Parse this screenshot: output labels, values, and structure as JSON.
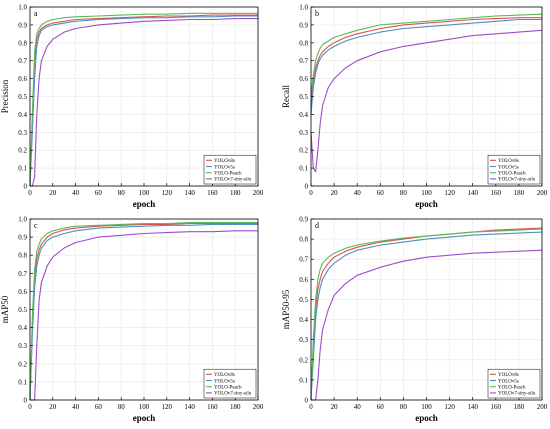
{
  "colors": {
    "YOLOv8s": "#d9534f",
    "YOLOv5s": "#4f8fbf",
    "YOLO-Peach": "#5cb85c",
    "YOLOv7-tiny-silu": "#9b4dca"
  },
  "chart_data": [
    {
      "type": "line",
      "panel_label": "a",
      "title": "",
      "xlabel": "epoch",
      "ylabel": "Precision",
      "xlim": [
        0,
        200
      ],
      "ylim": [
        0,
        1.0
      ],
      "xticks": [
        "0",
        "20",
        "40",
        "60",
        "80",
        "100",
        "120",
        "140",
        "160",
        "180",
        "200"
      ],
      "yticks": [
        "0",
        "0.1",
        "0.2",
        "0.3",
        "0.4",
        "0.5",
        "0.6",
        "0.7",
        "0.8",
        "0.9",
        "1.0"
      ],
      "grid": true,
      "legend_position": "bottom-right",
      "x": [
        0,
        2,
        4,
        6,
        8,
        10,
        15,
        20,
        30,
        40,
        60,
        80,
        100,
        120,
        140,
        160,
        180,
        200
      ],
      "series": [
        {
          "name": "YOLOv8s",
          "color_key": "YOLOv8s",
          "values": [
            0.0,
            0.35,
            0.7,
            0.82,
            0.86,
            0.88,
            0.9,
            0.91,
            0.92,
            0.93,
            0.935,
            0.94,
            0.945,
            0.95,
            0.95,
            0.955,
            0.955,
            0.955
          ]
        },
        {
          "name": "YOLOv5s",
          "color_key": "YOLOv5s",
          "values": [
            0.0,
            0.3,
            0.6,
            0.78,
            0.84,
            0.87,
            0.89,
            0.9,
            0.91,
            0.92,
            0.93,
            0.935,
            0.94,
            0.94,
            0.945,
            0.945,
            0.95,
            0.95
          ]
        },
        {
          "name": "YOLO-Peach",
          "color_key": "YOLO-Peach",
          "values": [
            0.0,
            0.4,
            0.75,
            0.85,
            0.88,
            0.9,
            0.92,
            0.93,
            0.94,
            0.945,
            0.95,
            0.955,
            0.96,
            0.96,
            0.965,
            0.965,
            0.965,
            0.965
          ]
        },
        {
          "name": "YOLOv7-tiny-silu",
          "color_key": "YOLOv7-tiny-silu",
          "values": [
            0.0,
            0.0,
            0.05,
            0.4,
            0.6,
            0.7,
            0.78,
            0.82,
            0.86,
            0.88,
            0.9,
            0.91,
            0.92,
            0.925,
            0.93,
            0.93,
            0.935,
            0.935
          ]
        }
      ]
    },
    {
      "type": "line",
      "panel_label": "b",
      "title": "",
      "xlabel": "epoch",
      "ylabel": "Recall",
      "xlim": [
        0,
        200
      ],
      "ylim": [
        0,
        1.0
      ],
      "xticks": [
        "0",
        "20",
        "40",
        "60",
        "80",
        "100",
        "120",
        "140",
        "160",
        "180",
        "200"
      ],
      "yticks": [
        "0",
        "0.1",
        "0.2",
        "0.3",
        "0.4",
        "0.5",
        "0.6",
        "0.7",
        "0.8",
        "0.9",
        "1.0"
      ],
      "grid": true,
      "legend_position": "bottom-right",
      "x": [
        0,
        2,
        4,
        6,
        8,
        10,
        15,
        20,
        30,
        40,
        60,
        80,
        100,
        120,
        140,
        160,
        180,
        200
      ],
      "series": [
        {
          "name": "YOLOv8s",
          "color_key": "YOLOv8s",
          "values": [
            0.45,
            0.58,
            0.66,
            0.7,
            0.73,
            0.75,
            0.78,
            0.8,
            0.83,
            0.85,
            0.88,
            0.9,
            0.91,
            0.92,
            0.93,
            0.935,
            0.94,
            0.94
          ]
        },
        {
          "name": "YOLOv5s",
          "color_key": "YOLOv5s",
          "values": [
            0.4,
            0.55,
            0.63,
            0.68,
            0.71,
            0.73,
            0.76,
            0.78,
            0.81,
            0.83,
            0.86,
            0.88,
            0.89,
            0.9,
            0.91,
            0.92,
            0.93,
            0.93
          ]
        },
        {
          "name": "YOLO-Peach",
          "color_key": "YOLO-Peach",
          "values": [
            0.5,
            0.62,
            0.7,
            0.74,
            0.77,
            0.79,
            0.81,
            0.83,
            0.85,
            0.87,
            0.9,
            0.91,
            0.92,
            0.93,
            0.94,
            0.95,
            0.955,
            0.96
          ]
        },
        {
          "name": "YOLOv7-tiny-silu",
          "color_key": "YOLOv7-tiny-silu",
          "values": [
            0.3,
            0.1,
            0.08,
            0.2,
            0.35,
            0.45,
            0.55,
            0.6,
            0.66,
            0.7,
            0.75,
            0.78,
            0.8,
            0.82,
            0.84,
            0.85,
            0.86,
            0.87
          ]
        }
      ]
    },
    {
      "type": "line",
      "panel_label": "c",
      "title": "",
      "xlabel": "epoch",
      "ylabel": "mAP50",
      "xlim": [
        0,
        200
      ],
      "ylim": [
        0,
        1.0
      ],
      "xticks": [
        "0",
        "20",
        "40",
        "60",
        "80",
        "100",
        "120",
        "140",
        "160",
        "180",
        "200"
      ],
      "yticks": [
        "0",
        "0.1",
        "0.2",
        "0.3",
        "0.4",
        "0.5",
        "0.6",
        "0.7",
        "0.8",
        "0.9",
        "1.0"
      ],
      "grid": true,
      "legend_position": "bottom-right",
      "x": [
        0,
        2,
        4,
        6,
        8,
        10,
        15,
        20,
        30,
        40,
        60,
        80,
        100,
        120,
        140,
        160,
        180,
        200
      ],
      "series": [
        {
          "name": "YOLOv8s",
          "color_key": "YOLOv8s",
          "values": [
            0.0,
            0.4,
            0.68,
            0.78,
            0.83,
            0.86,
            0.9,
            0.92,
            0.94,
            0.95,
            0.96,
            0.965,
            0.97,
            0.97,
            0.975,
            0.975,
            0.975,
            0.975
          ]
        },
        {
          "name": "YOLOv5s",
          "color_key": "YOLOv5s",
          "values": [
            0.0,
            0.35,
            0.62,
            0.74,
            0.8,
            0.84,
            0.88,
            0.9,
            0.92,
            0.935,
            0.95,
            0.955,
            0.96,
            0.965,
            0.965,
            0.97,
            0.97,
            0.97
          ]
        },
        {
          "name": "YOLO-Peach",
          "color_key": "YOLO-Peach",
          "values": [
            0.0,
            0.45,
            0.72,
            0.82,
            0.86,
            0.89,
            0.92,
            0.935,
            0.95,
            0.96,
            0.965,
            0.97,
            0.975,
            0.975,
            0.98,
            0.98,
            0.98,
            0.98
          ]
        },
        {
          "name": "YOLOv7-tiny-silu",
          "color_key": "YOLOv7-tiny-silu",
          "values": [
            0.0,
            0.0,
            0.0,
            0.3,
            0.55,
            0.65,
            0.74,
            0.79,
            0.84,
            0.87,
            0.9,
            0.91,
            0.92,
            0.925,
            0.93,
            0.93,
            0.935,
            0.935
          ]
        }
      ]
    },
    {
      "type": "line",
      "panel_label": "d",
      "title": "",
      "xlabel": "epoch",
      "ylabel": "mAP50-95",
      "xlim": [
        0,
        200
      ],
      "ylim": [
        0,
        0.9
      ],
      "xticks": [
        "0",
        "20",
        "40",
        "60",
        "80",
        "100",
        "120",
        "140",
        "160",
        "180",
        "200"
      ],
      "yticks": [
        "0",
        "0.1",
        "0.2",
        "0.3",
        "0.4",
        "0.5",
        "0.6",
        "0.7",
        "0.8",
        "0.9"
      ],
      "grid": true,
      "legend_position": "bottom-right",
      "x": [
        0,
        2,
        4,
        6,
        8,
        10,
        15,
        20,
        30,
        40,
        60,
        80,
        100,
        120,
        140,
        160,
        180,
        200
      ],
      "series": [
        {
          "name": "YOLOv8s",
          "color_key": "YOLOv8s",
          "values": [
            0.0,
            0.25,
            0.45,
            0.55,
            0.6,
            0.64,
            0.68,
            0.71,
            0.74,
            0.76,
            0.785,
            0.8,
            0.815,
            0.825,
            0.835,
            0.845,
            0.85,
            0.855
          ]
        },
        {
          "name": "YOLOv5s",
          "color_key": "YOLOv5s",
          "values": [
            0.0,
            0.2,
            0.4,
            0.5,
            0.56,
            0.6,
            0.65,
            0.68,
            0.72,
            0.745,
            0.77,
            0.785,
            0.8,
            0.81,
            0.82,
            0.825,
            0.83,
            0.835
          ]
        },
        {
          "name": "YOLO-Peach",
          "color_key": "YOLO-Peach",
          "values": [
            0.0,
            0.3,
            0.5,
            0.6,
            0.65,
            0.68,
            0.71,
            0.73,
            0.755,
            0.77,
            0.79,
            0.805,
            0.815,
            0.825,
            0.835,
            0.84,
            0.845,
            0.85
          ]
        },
        {
          "name": "YOLOv7-tiny-silu",
          "color_key": "YOLOv7-tiny-silu",
          "values": [
            0.0,
            0.0,
            0.0,
            0.1,
            0.25,
            0.35,
            0.45,
            0.52,
            0.58,
            0.62,
            0.66,
            0.69,
            0.71,
            0.72,
            0.73,
            0.735,
            0.74,
            0.745
          ]
        }
      ]
    }
  ]
}
